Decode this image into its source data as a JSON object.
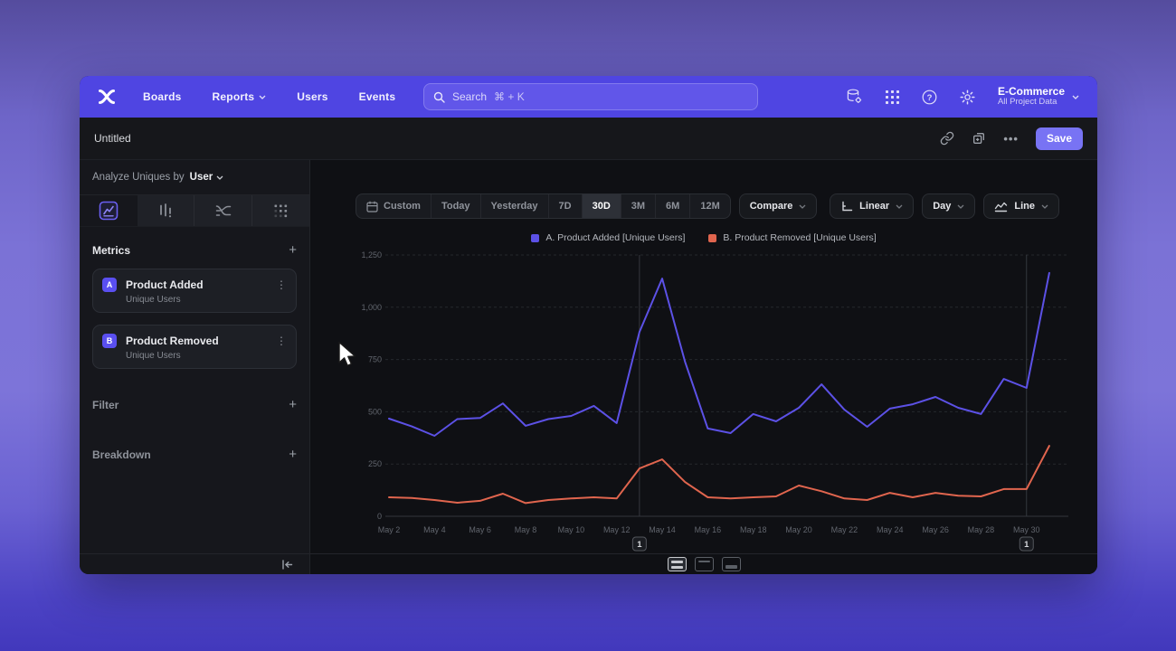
{
  "nav": {
    "items": [
      "Boards",
      "Reports",
      "Users",
      "Events"
    ],
    "search_placeholder": "Search",
    "search_shortcut": "⌘ + K",
    "project_name": "E-Commerce",
    "project_scope": "All Project Data"
  },
  "report_header": {
    "title": "Untitled",
    "menu_glyph": "•••",
    "save_label": "Save"
  },
  "sidebar": {
    "analyze_prefix": "Analyze Uniques by",
    "analyze_value": "User",
    "metrics_label": "Metrics",
    "metrics": [
      {
        "badge": "A",
        "title": "Product Added",
        "subtitle": "Unique Users"
      },
      {
        "badge": "B",
        "title": "Product Removed",
        "subtitle": "Unique Users"
      }
    ],
    "filter_label": "Filter",
    "breakdown_label": "Breakdown"
  },
  "controls": {
    "ranges": [
      "Custom",
      "Today",
      "Yesterday",
      "7D",
      "30D",
      "3M",
      "6M",
      "12M"
    ],
    "selected_range": "30D",
    "compare_label": "Compare",
    "scale_label": "Linear",
    "interval_label": "Day",
    "chart_type_label": "Line"
  },
  "glyphs": {
    "plus": "+",
    "kebab": "⋮",
    "help": "?"
  },
  "colors": {
    "accent": "#4f45e2",
    "save": "#7873f4",
    "series_a": "#5c51e6",
    "series_b": "#e0654e"
  },
  "chart_data": {
    "type": "line",
    "title": "",
    "xlabel": "",
    "ylabel": "",
    "categories": [
      "May 2",
      "May 3",
      "May 4",
      "May 5",
      "May 6",
      "May 7",
      "May 8",
      "May 9",
      "May 10",
      "May 11",
      "May 12",
      "May 13",
      "May 14",
      "May 15",
      "May 16",
      "May 17",
      "May 18",
      "May 19",
      "May 20",
      "May 21",
      "May 22",
      "May 23",
      "May 24",
      "May 25",
      "May 26",
      "May 27",
      "May 28",
      "May 29",
      "May 30",
      "May 31"
    ],
    "x_tick_every": 2,
    "ylim": [
      0,
      1250
    ],
    "yticks": [
      0,
      250,
      500,
      750,
      1000,
      1250
    ],
    "grid": "horizontal-dashed",
    "legend_position": "top",
    "series": [
      {
        "name": "A. Product Added [Unique Users]",
        "color": "#5c51e6",
        "values": [
          467,
          430,
          385,
          465,
          470,
          540,
          433,
          465,
          480,
          528,
          446,
          882,
          1137,
          740,
          420,
          398,
          489,
          454,
          519,
          631,
          510,
          428,
          515,
          536,
          571,
          519,
          489,
          657,
          614,
          1164
        ]
      },
      {
        "name": "B. Product Removed [Unique Users]",
        "color": "#e0654e",
        "values": [
          91,
          88,
          78,
          65,
          74,
          108,
          63,
          78,
          85,
          91,
          85,
          229,
          272,
          164,
          91,
          85,
          91,
          95,
          147,
          120,
          85,
          78,
          112,
          91,
          112,
          98,
          95,
          130,
          130,
          337
        ]
      }
    ],
    "annotations": [
      {
        "x": "May 13",
        "label": "1"
      },
      {
        "x": "May 30",
        "label": "1"
      }
    ]
  }
}
